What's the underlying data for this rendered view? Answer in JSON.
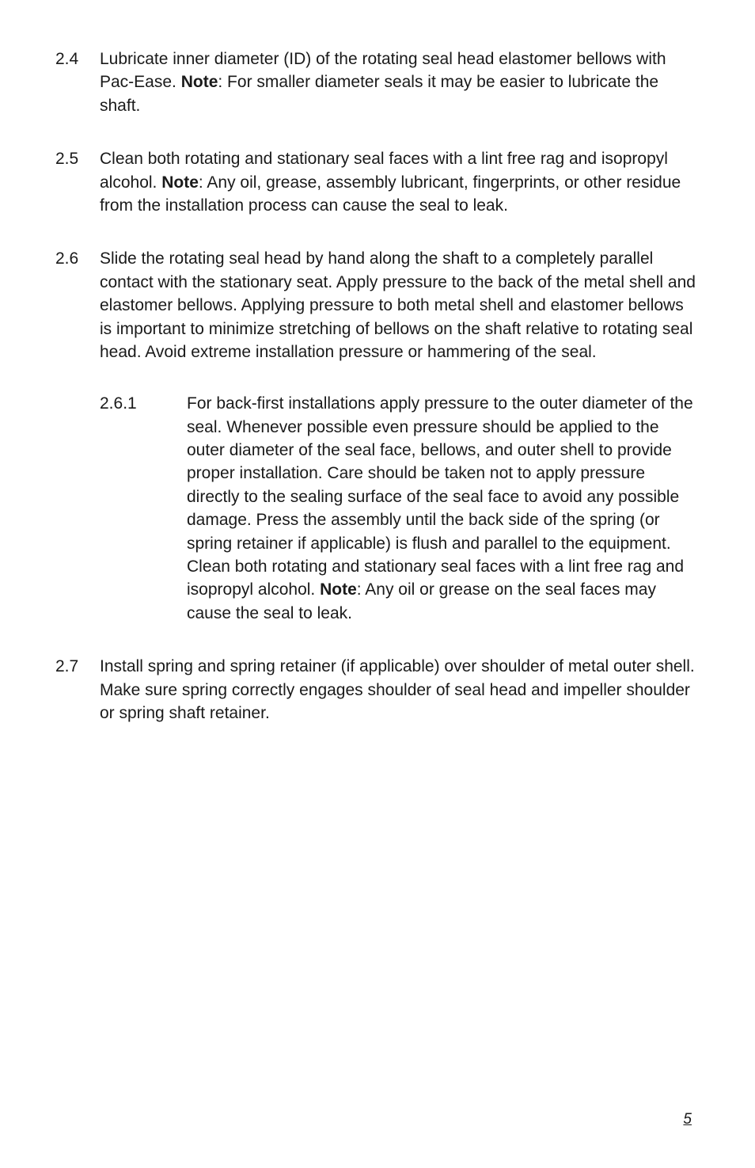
{
  "items": [
    {
      "number": "2.4",
      "text_before": "Lubricate inner diameter (ID) of the rotating seal head elastomer bellows with Pac-Ease. ",
      "text_bold": "Note",
      "text_after": ": For smaller diameter seals it may be easier to lubricate the shaft."
    },
    {
      "number": "2.5",
      "text_before": "Clean both rotating and stationary seal faces with a lint free rag and isopropyl alcohol. ",
      "text_bold": "Note",
      "text_after": ": Any oil, grease, assembly lubricant, fingerprints, or other residue from the installation process can cause the seal to leak."
    },
    {
      "number": "2.6",
      "text_before": "Slide the rotating seal head by hand along the shaft to a completely parallel contact with the stationary seat. Apply pressure to the back of the metal shell and elastomer bellows. Applying pressure to both metal shell and elastomer bellows is important to minimize stretching of bellows on the shaft relative to rotating seal head. Avoid extreme installation pressure or hammering of the seal.",
      "text_bold": "",
      "text_after": "",
      "sub_item": {
        "number": "2.6.1",
        "text_before": "For back-first installations apply pressure to the outer diameter of the seal. Whenever possible even pressure should be applied to the outer diameter of the seal face, bellows, and outer shell to provide proper installation. Care should be taken not to apply pressure directly to the sealing surface of the seal face to avoid any possible damage. Press the assembly until the back side of the spring (or spring retainer if applicable) is flush and parallel to the equipment. Clean both rotating and stationary seal faces with a lint free rag and isopropyl alcohol. ",
        "text_bold": "Note",
        "text_after": ": Any oil or grease on the seal faces may cause the seal to leak."
      }
    },
    {
      "number": "2.7",
      "text_before": "Install spring and spring retainer (if applicable) over shoulder of metal outer shell. Make sure spring correctly engages shoulder of seal head and impeller shoulder or spring shaft retainer.",
      "text_bold": "",
      "text_after": ""
    }
  ],
  "page_number": "5"
}
